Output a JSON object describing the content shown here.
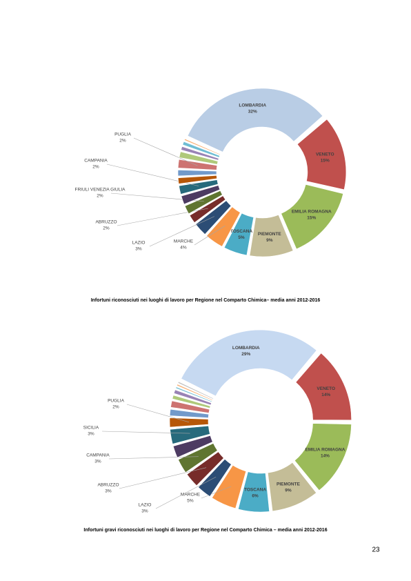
{
  "chart_data": [
    {
      "type": "pie",
      "title": "Infortuni riconosciuti nei luoghi di lavoro per Regione nel Comparto Chimica– media anni 2012-2016",
      "categories": [
        "LOMBARDIA",
        "VENETO",
        "EMILIA ROMAGNA",
        "PIEMONTE",
        "TOSCANA",
        "MARCHE",
        "LAZIO",
        "ABRUZZO",
        "FRIULI VENEZIA GIULIA",
        null,
        "CAMPANIA",
        null,
        null,
        "PUGLIA",
        null,
        null,
        null,
        null
      ],
      "values": [
        32,
        15,
        15,
        9,
        5,
        4,
        3,
        2,
        2,
        2,
        2,
        1.5,
        1.5,
        2,
        1.5,
        1,
        1,
        0.5
      ],
      "value_labels": [
        "32%",
        "15%",
        "15%",
        "9%",
        "5%",
        "4%",
        "3%",
        "2%",
        "2%",
        null,
        "2%",
        null,
        null,
        "2%",
        null,
        null,
        null,
        null
      ],
      "colors": [
        "#b9cde5",
        "#c0504d",
        "#9bbb59",
        "#c4bd97",
        "#4bacc6",
        "#f79646",
        "#2c4d75",
        "#772c2a",
        "#5f7530",
        "#4d3b62",
        "#276a7c",
        "#b65708",
        "#729aca",
        "#cd7371",
        "#afc97a",
        "#9983b5",
        "#6fbdd3",
        "#f9ab6b"
      ]
    },
    {
      "type": "pie",
      "title": "Infortuni gravi riconosciuti nei luoghi di lavoro per Regione nel Comparto Chimica – media anni 2012-2016",
      "categories": [
        "LOMBARDIA",
        "VENETO",
        "EMILIA ROMAGNA",
        "PIEMONTE",
        "TOSCANA",
        "MARCHE",
        "LAZIO",
        "ABRUZZO",
        "CAMPANIA",
        null,
        "SICILIA",
        "PUGLIA",
        null,
        null,
        null,
        null,
        null,
        null,
        null
      ],
      "values": [
        29,
        14,
        14,
        9,
        6,
        5,
        3,
        3,
        3,
        2.5,
        3,
        2,
        1.5,
        1.5,
        1,
        1,
        0.5,
        0.5,
        0.5
      ],
      "value_labels": [
        "29%",
        "14%",
        "14%",
        "9%",
        "6%",
        "5%",
        "3%",
        "3%",
        "3%",
        null,
        "3%",
        "2%",
        null,
        null,
        null,
        null,
        null,
        null,
        null
      ],
      "colors": [
        "#c6d9f1",
        "#c0504d",
        "#9bbb59",
        "#c4bd97",
        "#4bacc6",
        "#f79646",
        "#2c4d75",
        "#772c2a",
        "#5f7530",
        "#4d3b62",
        "#276a7c",
        "#b65708",
        "#729aca",
        "#cd7371",
        "#afc97a",
        "#9983b5",
        "#6fbdd3",
        "#f9ab6b",
        "#bfbfbf"
      ]
    }
  ],
  "page_number": "23"
}
